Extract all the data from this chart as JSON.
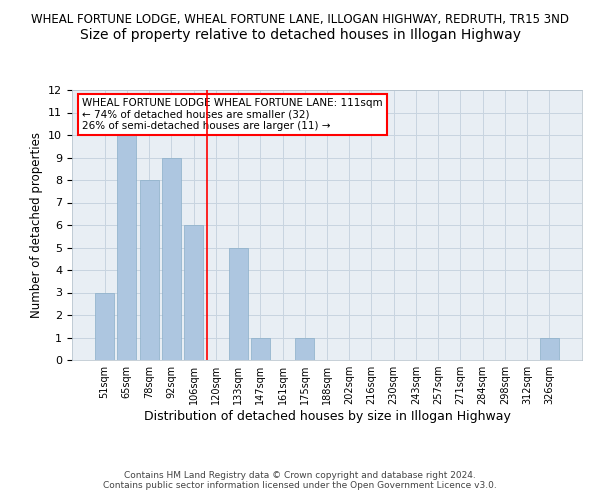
{
  "title": "WHEAL FORTUNE LODGE, WHEAL FORTUNE LANE, ILLOGAN HIGHWAY, REDRUTH, TR15 3ND",
  "subtitle": "Size of property relative to detached houses in Illogan Highway",
  "xlabel": "Distribution of detached houses by size in Illogan Highway",
  "ylabel": "Number of detached properties",
  "categories": [
    "51sqm",
    "65sqm",
    "78sqm",
    "92sqm",
    "106sqm",
    "120sqm",
    "133sqm",
    "147sqm",
    "161sqm",
    "175sqm",
    "188sqm",
    "202sqm",
    "216sqm",
    "230sqm",
    "243sqm",
    "257sqm",
    "271sqm",
    "284sqm",
    "298sqm",
    "312sqm",
    "326sqm"
  ],
  "values": [
    3,
    10,
    8,
    9,
    6,
    0,
    5,
    1,
    0,
    1,
    0,
    0,
    0,
    0,
    0,
    0,
    0,
    0,
    0,
    0,
    1
  ],
  "bar_color": "#adc6e0",
  "bar_edge_color": "#8aaec8",
  "ylim": [
    0,
    12
  ],
  "yticks": [
    0,
    1,
    2,
    3,
    4,
    5,
    6,
    7,
    8,
    9,
    10,
    11,
    12
  ],
  "red_line_x": 4.62,
  "annotation_text": "WHEAL FORTUNE LODGE WHEAL FORTUNE LANE: 111sqm\n← 74% of detached houses are smaller (32)\n26% of semi-detached houses are larger (11) →",
  "annotation_box_color": "white",
  "annotation_box_edge": "red",
  "footer_text": "Contains HM Land Registry data © Crown copyright and database right 2024.\nContains public sector information licensed under the Open Government Licence v3.0.",
  "grid_color": "#c8d4e0",
  "background_color": "#e8eef4",
  "title_fontsize": 8.5,
  "subtitle_fontsize": 10
}
